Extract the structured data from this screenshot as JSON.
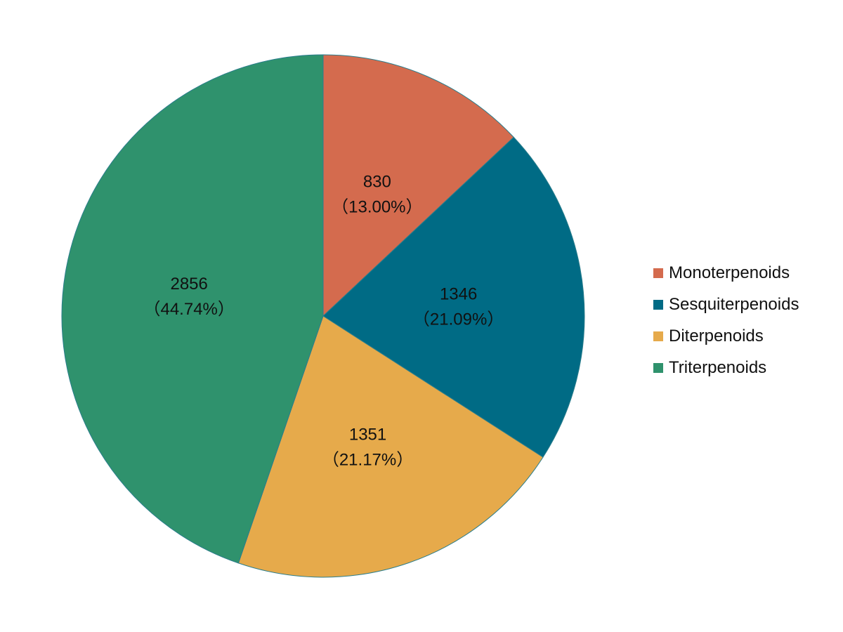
{
  "chart_data": {
    "type": "pie",
    "title": "",
    "slices": [
      {
        "name": "Monoterpenoids",
        "value": 830,
        "percent_label": "（13.00%）",
        "value_label": "830",
        "color": "#D46B4E"
      },
      {
        "name": "Sesquiterpenoids",
        "value": 1346,
        "percent_label": "（21.09%）",
        "value_label": "1346",
        "color": "#006B85"
      },
      {
        "name": "Diterpenoids",
        "value": 1351,
        "percent_label": "（21.17%）",
        "value_label": "1351",
        "color": "#E6AA4B"
      },
      {
        "name": "Triterpenoids",
        "value": 2856,
        "percent_label": "（44.74%）",
        "value_label": "2856",
        "color": "#2F926D"
      }
    ],
    "legend_position": "right"
  }
}
